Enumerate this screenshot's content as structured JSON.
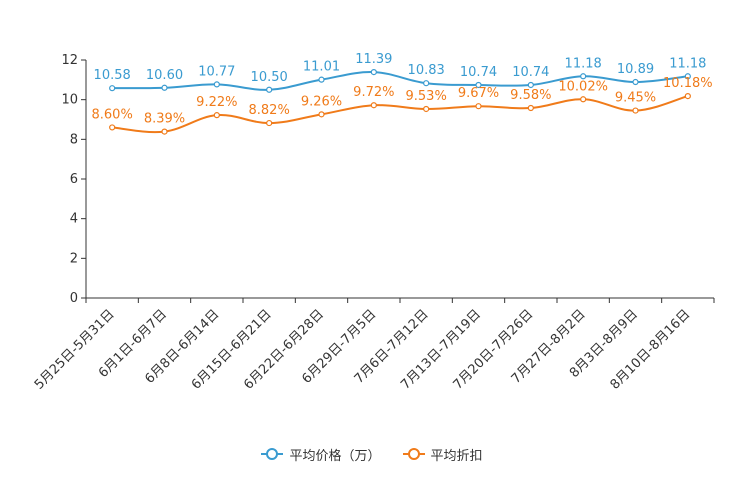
{
  "chart_data": {
    "type": "line",
    "title": "",
    "xlabel": "",
    "ylabel": "",
    "ylim": [
      0,
      12
    ],
    "yticks": [
      0,
      2,
      4,
      6,
      8,
      10,
      12
    ],
    "categories": [
      "5月25日-5月31日",
      "6月1日-6月7日",
      "6月8日-6月14日",
      "6月15日-6月21日",
      "6月22日-6月28日",
      "6月29日-7月5日",
      "7月6日-7月12日",
      "7月13日-7月19日",
      "7月20日-7月26日",
      "7月27日-8月2日",
      "8月3日-8月9日",
      "8月10日-8月16日"
    ],
    "series": [
      {
        "name": "平均价格（万）",
        "color": "#3a9bd0",
        "values": [
          10.58,
          10.6,
          10.77,
          10.5,
          11.01,
          11.39,
          10.83,
          10.74,
          10.74,
          11.18,
          10.89,
          11.18
        ],
        "labels": [
          "10.58",
          "10.60",
          "10.77",
          "10.50",
          "11.01",
          "11.39",
          "10.83",
          "10.74",
          "10.74",
          "11.18",
          "10.89",
          "11.18"
        ]
      },
      {
        "name": "平均折扣",
        "color": "#f07b1a",
        "values": [
          8.6,
          8.39,
          9.22,
          8.82,
          9.26,
          9.72,
          9.53,
          9.67,
          9.58,
          10.02,
          9.45,
          10.18
        ],
        "labels": [
          "8.60%",
          "8.39%",
          "9.22%",
          "8.82%",
          "9.26%",
          "9.72%",
          "9.53%",
          "9.67%",
          "9.58%",
          "10.02%",
          "9.45%",
          "10.18%"
        ]
      }
    ],
    "legend_position": "bottom"
  }
}
